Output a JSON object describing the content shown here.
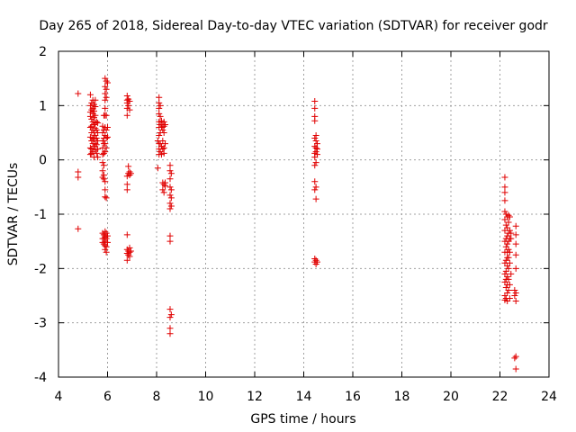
{
  "chart_data": {
    "type": "scatter",
    "title": "Day 265 of 2018, Sidereal Day-to-day VTEC variation (SDTVAR) for receiver godr",
    "xlabel": "GPS time / hours",
    "ylabel": "SDTVAR / TECUs",
    "xlim": [
      4,
      24
    ],
    "ylim": [
      -4,
      2
    ],
    "xticks": [
      4,
      6,
      8,
      10,
      12,
      14,
      16,
      18,
      20,
      22,
      24
    ],
    "yticks": [
      -4,
      -3,
      -2,
      -1,
      0,
      1,
      2
    ],
    "xtick_labels": [
      "4",
      "6",
      "8",
      "10",
      "12",
      "14",
      "16",
      "18",
      "20",
      "22",
      "24"
    ],
    "ytick_labels": [
      "-4",
      "-3",
      "-2",
      "-1",
      "0",
      "1",
      "2"
    ],
    "grid": true,
    "legend": "none",
    "marker": "+",
    "colors": {
      "series": "#e00000",
      "grid": "#a0a0a0",
      "axes": "#000000"
    },
    "series": [
      {
        "name": "SDTVAR",
        "points": [
          [
            4.8,
            1.22
          ],
          [
            4.8,
            -0.22
          ],
          [
            4.8,
            -0.32
          ],
          [
            4.8,
            -1.27
          ],
          [
            5.3,
            1.2
          ],
          [
            5.3,
            1.0
          ],
          [
            5.3,
            0.88
          ],
          [
            5.3,
            0.8
          ],
          [
            5.3,
            0.6
          ],
          [
            5.3,
            0.42
          ],
          [
            5.3,
            0.22
          ],
          [
            5.3,
            0.1
          ],
          [
            5.35,
            1.05
          ],
          [
            5.35,
            0.92
          ],
          [
            5.35,
            0.75
          ],
          [
            5.35,
            0.62
          ],
          [
            5.35,
            0.5
          ],
          [
            5.35,
            0.35
          ],
          [
            5.35,
            0.2
          ],
          [
            5.35,
            0.12
          ],
          [
            5.4,
            1.1
          ],
          [
            5.4,
            0.95
          ],
          [
            5.4,
            0.85
          ],
          [
            5.4,
            0.7
          ],
          [
            5.4,
            0.55
          ],
          [
            5.4,
            0.4
          ],
          [
            5.4,
            0.3
          ],
          [
            5.4,
            0.15
          ],
          [
            5.45,
            1.02
          ],
          [
            5.45,
            0.9
          ],
          [
            5.45,
            0.78
          ],
          [
            5.45,
            0.65
          ],
          [
            5.45,
            0.5
          ],
          [
            5.45,
            0.38
          ],
          [
            5.45,
            0.25
          ],
          [
            5.45,
            0.05
          ],
          [
            5.5,
            1.1
          ],
          [
            5.5,
            0.98
          ],
          [
            5.5,
            0.82
          ],
          [
            5.5,
            0.68
          ],
          [
            5.5,
            0.58
          ],
          [
            5.5,
            0.45
          ],
          [
            5.5,
            0.3
          ],
          [
            5.5,
            0.18
          ],
          [
            5.55,
            0.7
          ],
          [
            5.55,
            0.55
          ],
          [
            5.55,
            0.4
          ],
          [
            5.55,
            0.28
          ],
          [
            5.55,
            0.12
          ],
          [
            5.6,
            0.68
          ],
          [
            5.6,
            0.5
          ],
          [
            5.6,
            0.35
          ],
          [
            5.6,
            0.2
          ],
          [
            5.6,
            0.05
          ],
          [
            5.8,
            0.62
          ],
          [
            5.8,
            0.5
          ],
          [
            5.8,
            0.35
          ],
          [
            5.8,
            0.22
          ],
          [
            5.8,
            0.1
          ],
          [
            5.8,
            -0.05
          ],
          [
            5.8,
            -0.2
          ],
          [
            5.8,
            -0.32
          ],
          [
            5.8,
            -1.35
          ],
          [
            5.8,
            -1.45
          ],
          [
            5.8,
            -1.52
          ],
          [
            5.85,
            0.82
          ],
          [
            5.85,
            0.55
          ],
          [
            5.85,
            0.4
          ],
          [
            5.85,
            0.3
          ],
          [
            5.85,
            0.12
          ],
          [
            5.85,
            -0.1
          ],
          [
            5.85,
            -0.28
          ],
          [
            5.85,
            -0.35
          ],
          [
            5.85,
            -1.38
          ],
          [
            5.85,
            -1.45
          ],
          [
            5.85,
            -1.55
          ],
          [
            5.9,
            1.5
          ],
          [
            5.9,
            1.35
          ],
          [
            5.9,
            1.22
          ],
          [
            5.9,
            1.1
          ],
          [
            5.9,
            0.95
          ],
          [
            5.9,
            0.82
          ],
          [
            5.9,
            0.6
          ],
          [
            5.9,
            0.45
          ],
          [
            5.9,
            0.3
          ],
          [
            5.9,
            0.15
          ],
          [
            5.9,
            -0.4
          ],
          [
            5.9,
            -0.55
          ],
          [
            5.9,
            -0.68
          ],
          [
            5.9,
            -1.32
          ],
          [
            5.9,
            -1.42
          ],
          [
            5.9,
            -1.5
          ],
          [
            5.9,
            -1.58
          ],
          [
            5.9,
            -1.65
          ],
          [
            5.95,
            1.45
          ],
          [
            5.95,
            1.3
          ],
          [
            5.95,
            1.15
          ],
          [
            5.95,
            0.82
          ],
          [
            5.95,
            0.55
          ],
          [
            5.95,
            0.4
          ],
          [
            5.95,
            0.22
          ],
          [
            5.95,
            -0.7
          ],
          [
            5.95,
            -1.35
          ],
          [
            5.95,
            -1.45
          ],
          [
            5.95,
            -1.6
          ],
          [
            5.95,
            -1.7
          ],
          [
            6.0,
            1.42
          ],
          [
            6.0,
            0.6
          ],
          [
            6.0,
            0.42
          ],
          [
            6.0,
            -1.4
          ],
          [
            6.0,
            -1.52
          ],
          [
            6.8,
            1.18
          ],
          [
            6.8,
            1.1
          ],
          [
            6.8,
            1.05
          ],
          [
            6.8,
            0.95
          ],
          [
            6.8,
            0.82
          ],
          [
            6.8,
            -0.3
          ],
          [
            6.8,
            -0.45
          ],
          [
            6.8,
            -0.55
          ],
          [
            6.8,
            -1.38
          ],
          [
            6.8,
            -1.65
          ],
          [
            6.8,
            -1.72
          ],
          [
            6.8,
            -1.85
          ],
          [
            6.85,
            1.12
          ],
          [
            6.85,
            1.0
          ],
          [
            6.85,
            -0.12
          ],
          [
            6.85,
            -0.25
          ],
          [
            6.85,
            -1.68
          ],
          [
            6.85,
            -1.75
          ],
          [
            6.9,
            1.08
          ],
          [
            6.9,
            0.92
          ],
          [
            6.9,
            -0.22
          ],
          [
            6.9,
            -0.28
          ],
          [
            6.9,
            -1.62
          ],
          [
            6.9,
            -1.7
          ],
          [
            6.9,
            -1.78
          ],
          [
            6.95,
            -0.25
          ],
          [
            6.95,
            -1.68
          ],
          [
            8.05,
            0.35
          ],
          [
            8.05,
            -0.15
          ],
          [
            8.1,
            1.15
          ],
          [
            8.1,
            1.05
          ],
          [
            8.1,
            0.95
          ],
          [
            8.1,
            0.85
          ],
          [
            8.1,
            0.7
          ],
          [
            8.1,
            0.6
          ],
          [
            8.1,
            0.45
          ],
          [
            8.1,
            0.3
          ],
          [
            8.1,
            0.2
          ],
          [
            8.1,
            0.1
          ],
          [
            8.15,
            1.0
          ],
          [
            8.15,
            0.8
          ],
          [
            8.15,
            0.65
          ],
          [
            8.15,
            0.5
          ],
          [
            8.15,
            0.3
          ],
          [
            8.15,
            0.15
          ],
          [
            8.2,
            0.72
          ],
          [
            8.2,
            0.6
          ],
          [
            8.2,
            0.25
          ],
          [
            8.2,
            0.1
          ],
          [
            8.25,
            0.65
          ],
          [
            8.25,
            0.55
          ],
          [
            8.25,
            0.35
          ],
          [
            8.25,
            0.2
          ],
          [
            8.25,
            -0.42
          ],
          [
            8.25,
            -0.55
          ],
          [
            8.3,
            0.7
          ],
          [
            8.3,
            0.62
          ],
          [
            8.3,
            0.5
          ],
          [
            8.3,
            0.22
          ],
          [
            8.3,
            0.12
          ],
          [
            8.3,
            -0.45
          ],
          [
            8.3,
            -0.6
          ],
          [
            8.35,
            0.65
          ],
          [
            8.35,
            0.3
          ],
          [
            8.35,
            -0.42
          ],
          [
            8.35,
            -0.48
          ],
          [
            8.55,
            -0.1
          ],
          [
            8.55,
            -0.2
          ],
          [
            8.55,
            -0.35
          ],
          [
            8.55,
            -0.5
          ],
          [
            8.55,
            -0.65
          ],
          [
            8.55,
            -0.8
          ],
          [
            8.55,
            -0.9
          ],
          [
            8.55,
            -1.4
          ],
          [
            8.55,
            -1.5
          ],
          [
            8.55,
            -2.75
          ],
          [
            8.55,
            -2.9
          ],
          [
            8.55,
            -3.1
          ],
          [
            8.55,
            -3.2
          ],
          [
            8.6,
            -0.25
          ],
          [
            8.6,
            -0.55
          ],
          [
            8.6,
            -0.7
          ],
          [
            8.6,
            -0.85
          ],
          [
            8.6,
            -2.85
          ],
          [
            14.45,
            1.08
          ],
          [
            14.45,
            0.95
          ],
          [
            14.45,
            0.8
          ],
          [
            14.45,
            0.72
          ],
          [
            14.45,
            0.4
          ],
          [
            14.45,
            0.25
          ],
          [
            14.45,
            0.12
          ],
          [
            14.45,
            0.05
          ],
          [
            14.45,
            -0.1
          ],
          [
            14.45,
            -0.4
          ],
          [
            14.45,
            -0.55
          ],
          [
            14.45,
            -1.82
          ],
          [
            14.45,
            -1.88
          ],
          [
            14.5,
            0.45
          ],
          [
            14.5,
            0.35
          ],
          [
            14.5,
            0.22
          ],
          [
            14.5,
            0.15
          ],
          [
            14.5,
            -0.05
          ],
          [
            14.5,
            -0.5
          ],
          [
            14.5,
            -0.72
          ],
          [
            14.5,
            -1.85
          ],
          [
            14.5,
            -1.92
          ],
          [
            14.55,
            0.3
          ],
          [
            14.55,
            0.2
          ],
          [
            14.55,
            0.1
          ],
          [
            14.55,
            -1.88
          ],
          [
            22.2,
            -0.32
          ],
          [
            22.2,
            -0.5
          ],
          [
            22.2,
            -0.6
          ],
          [
            22.2,
            -0.75
          ],
          [
            22.2,
            -0.95
          ],
          [
            22.2,
            -1.1
          ],
          [
            22.2,
            -1.3
          ],
          [
            22.2,
            -1.5
          ],
          [
            22.2,
            -1.7
          ],
          [
            22.2,
            -1.9
          ],
          [
            22.2,
            -2.1
          ],
          [
            22.2,
            -2.25
          ],
          [
            22.2,
            -2.5
          ],
          [
            22.2,
            -2.58
          ],
          [
            22.25,
            -1.0
          ],
          [
            22.25,
            -1.2
          ],
          [
            22.25,
            -1.45
          ],
          [
            22.25,
            -1.6
          ],
          [
            22.25,
            -1.85
          ],
          [
            22.25,
            -2.05
          ],
          [
            22.25,
            -2.2
          ],
          [
            22.25,
            -2.35
          ],
          [
            22.25,
            -2.55
          ],
          [
            22.3,
            -1.05
          ],
          [
            22.3,
            -1.25
          ],
          [
            22.3,
            -1.4
          ],
          [
            22.3,
            -1.55
          ],
          [
            22.3,
            -1.7
          ],
          [
            22.3,
            -1.8
          ],
          [
            22.3,
            -1.95
          ],
          [
            22.3,
            -2.15
          ],
          [
            22.3,
            -2.3
          ],
          [
            22.3,
            -2.45
          ],
          [
            22.3,
            -2.6
          ],
          [
            22.35,
            -1.02
          ],
          [
            22.35,
            -1.15
          ],
          [
            22.35,
            -1.35
          ],
          [
            22.35,
            -1.5
          ],
          [
            22.35,
            -1.65
          ],
          [
            22.35,
            -1.8
          ],
          [
            22.35,
            -2.0
          ],
          [
            22.35,
            -2.2
          ],
          [
            22.35,
            -2.4
          ],
          [
            22.4,
            -1.05
          ],
          [
            22.4,
            -1.3
          ],
          [
            22.4,
            -1.45
          ],
          [
            22.4,
            -1.7
          ],
          [
            22.4,
            -1.9
          ],
          [
            22.4,
            -2.3
          ],
          [
            22.4,
            -2.55
          ],
          [
            22.45,
            -1.35
          ],
          [
            22.45,
            -1.45
          ],
          [
            22.45,
            -2.1
          ],
          [
            22.6,
            -2.4
          ],
          [
            22.6,
            -2.5
          ],
          [
            22.6,
            -3.65
          ],
          [
            22.65,
            -1.22
          ],
          [
            22.65,
            -1.38
          ],
          [
            22.65,
            -1.55
          ],
          [
            22.65,
            -1.75
          ],
          [
            22.65,
            -2.0
          ],
          [
            22.65,
            -2.45
          ],
          [
            22.65,
            -2.6
          ],
          [
            22.65,
            -3.62
          ],
          [
            22.65,
            -3.85
          ]
        ]
      }
    ]
  }
}
